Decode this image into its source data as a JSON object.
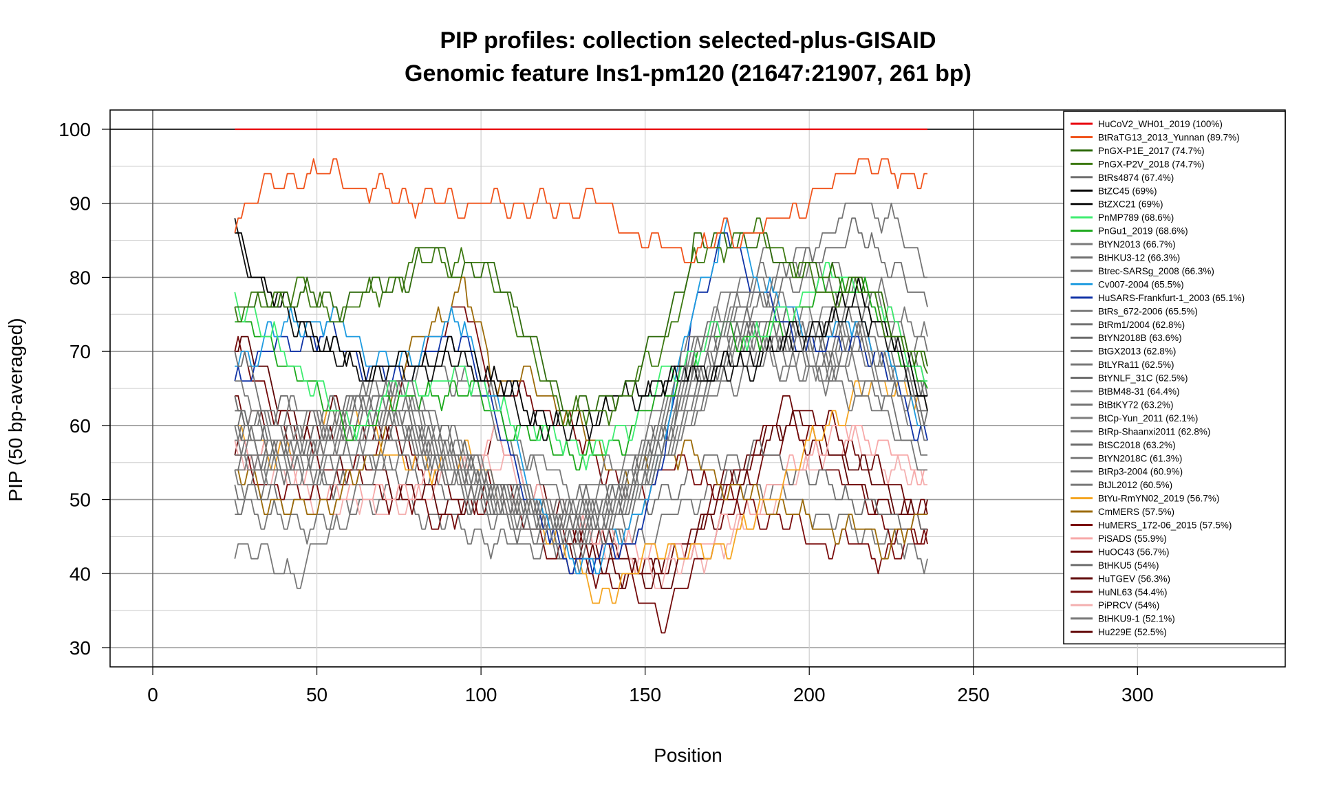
{
  "chart_data": {
    "type": "line",
    "title": "PIP profiles: collection selected-plus-GISAID",
    "subtitle": "Genomic feature Ins1-pm120 (21647:21907, 261 bp)",
    "xlabel": "Position",
    "ylabel": "PIP (50 bp-averaged)",
    "xlim": [
      -13,
      345
    ],
    "ylim": [
      27.4,
      102.6
    ],
    "xticks": [
      0,
      50,
      100,
      150,
      200,
      250,
      300
    ],
    "yticks": [
      30,
      40,
      50,
      60,
      70,
      80,
      90,
      100
    ],
    "grid": true,
    "legend_position": "top-right",
    "x": [
      25,
      35,
      45,
      55,
      65,
      75,
      85,
      95,
      105,
      115,
      125,
      135,
      145,
      155,
      165,
      175,
      185,
      195,
      205,
      215,
      225,
      236
    ],
    "series": [
      {
        "name": "HuCoV2_WH01_2019 (100%)",
        "color": "#e8000b",
        "values": [
          100,
          100,
          100,
          100,
          100,
          100,
          100,
          100,
          100,
          100,
          100,
          100,
          100,
          100,
          100,
          100,
          100,
          100,
          100,
          100,
          100,
          100
        ]
      },
      {
        "name": "BtRaTG13_2013_Yunnan (89.7%)",
        "color": "#f0541c",
        "values": [
          88,
          92,
          94,
          94,
          92,
          91,
          90,
          90,
          90,
          90,
          89,
          91,
          86,
          84,
          83,
          86,
          86,
          89,
          92,
          96,
          94,
          94
        ]
      },
      {
        "name": "PnGX-P1E_2017 (74.7%)",
        "color": "#2f6b0c",
        "values": [
          76,
          76,
          78,
          76,
          78,
          79,
          84,
          81,
          81,
          72,
          63,
          62,
          66,
          72,
          84,
          86,
          84,
          82,
          80,
          80,
          74,
          68
        ]
      },
      {
        "name": "PnGX-P2V_2018 (74.7%)",
        "color": "#3d7a12",
        "values": [
          75,
          77,
          78,
          75,
          77,
          80,
          83,
          82,
          80,
          70,
          62,
          61,
          65,
          70,
          82,
          85,
          86,
          82,
          78,
          79,
          73,
          67
        ]
      },
      {
        "name": "BtRs4874 (67.4%)",
        "color": "#707070",
        "values": [
          70,
          62,
          58,
          60,
          64,
          66,
          62,
          56,
          52,
          50,
          48,
          46,
          48,
          56,
          70,
          74,
          72,
          70,
          68,
          70,
          66,
          60
        ]
      },
      {
        "name": "BtZC45 (69%)",
        "color": "#000000",
        "values": [
          86,
          78,
          74,
          70,
          68,
          68,
          69,
          70,
          66,
          62,
          60,
          62,
          65,
          66,
          68,
          68,
          70,
          72,
          74,
          78,
          72,
          64
        ]
      },
      {
        "name": "BtZXC21 (69%)",
        "color": "#111111",
        "values": [
          86,
          77,
          73,
          69,
          67,
          67,
          68,
          69,
          65,
          61,
          59,
          61,
          64,
          65,
          67,
          67,
          69,
          71,
          73,
          76,
          71,
          62
        ]
      },
      {
        "name": "PnMP789 (68.6%)",
        "color": "#3ded6f",
        "values": [
          78,
          72,
          68,
          62,
          60,
          66,
          64,
          68,
          62,
          60,
          58,
          56,
          60,
          66,
          70,
          74,
          72,
          76,
          80,
          80,
          74,
          66
        ]
      },
      {
        "name": "PnGu1_2019 (68.6%)",
        "color": "#1aa81a",
        "values": [
          76,
          70,
          67,
          61,
          59,
          65,
          63,
          66,
          61,
          59,
          57,
          55,
          59,
          64,
          69,
          73,
          71,
          75,
          78,
          79,
          72,
          65
        ]
      },
      {
        "name": "BtYN2013 (66.7%)",
        "color": "#7a7a7a",
        "values": [
          66,
          60,
          56,
          58,
          62,
          64,
          60,
          54,
          50,
          48,
          46,
          48,
          50,
          58,
          68,
          72,
          70,
          68,
          66,
          72,
          68,
          62
        ]
      },
      {
        "name": "BtHKU3-12 (66.3%)",
        "color": "#6f6f6f",
        "values": [
          62,
          58,
          54,
          56,
          58,
          60,
          56,
          52,
          50,
          48,
          46,
          46,
          50,
          60,
          70,
          74,
          76,
          80,
          84,
          86,
          82,
          76
        ]
      },
      {
        "name": "Btrec-SARSg_2008 (66.3%)",
        "color": "#757575",
        "values": [
          60,
          56,
          52,
          54,
          56,
          58,
          56,
          50,
          48,
          46,
          44,
          46,
          52,
          62,
          72,
          76,
          78,
          82,
          86,
          90,
          88,
          80
        ]
      },
      {
        "name": "Cv007-2004 (65.5%)",
        "color": "#1e9be0",
        "values": [
          68,
          72,
          74,
          74,
          70,
          68,
          72,
          74,
          62,
          52,
          42,
          42,
          46,
          56,
          78,
          86,
          80,
          74,
          72,
          74,
          68,
          60
        ]
      },
      {
        "name": "HuSARS-Frankfurt-1_2003 (65.1%)",
        "color": "#1033a6",
        "values": [
          66,
          70,
          72,
          72,
          68,
          66,
          70,
          72,
          60,
          50,
          42,
          42,
          44,
          54,
          76,
          86,
          78,
          72,
          70,
          72,
          66,
          58
        ]
      },
      {
        "name": "BtRs_672-2006 (65.5%)",
        "color": "#7c7c7c",
        "values": [
          64,
          58,
          56,
          58,
          60,
          62,
          58,
          54,
          50,
          48,
          46,
          48,
          52,
          60,
          70,
          76,
          78,
          76,
          74,
          78,
          74,
          68
        ]
      },
      {
        "name": "BtRm1/2004 (62.8%)",
        "color": "#727272",
        "values": [
          58,
          56,
          54,
          58,
          60,
          62,
          58,
          52,
          50,
          48,
          46,
          48,
          50,
          58,
          66,
          70,
          72,
          72,
          70,
          74,
          72,
          66
        ]
      },
      {
        "name": "BtYN2018B (63.6%)",
        "color": "#6c6c6c",
        "values": [
          60,
          58,
          56,
          60,
          62,
          64,
          60,
          54,
          50,
          48,
          48,
          50,
          52,
          60,
          68,
          72,
          74,
          72,
          70,
          72,
          70,
          64
        ]
      },
      {
        "name": "BtGX2013 (62.8%)",
        "color": "#808080",
        "values": [
          56,
          54,
          52,
          56,
          58,
          60,
          58,
          52,
          50,
          48,
          46,
          48,
          52,
          58,
          66,
          70,
          72,
          70,
          68,
          70,
          68,
          62
        ]
      },
      {
        "name": "BtLYRa11 (62.5%)",
        "color": "#777777",
        "values": [
          58,
          56,
          56,
          58,
          60,
          60,
          56,
          52,
          50,
          48,
          46,
          48,
          50,
          56,
          64,
          70,
          72,
          72,
          72,
          74,
          70,
          64
        ]
      },
      {
        "name": "BtYNLF_31C (62.5%)",
        "color": "#6e6e6e",
        "values": [
          56,
          56,
          58,
          60,
          62,
          62,
          58,
          54,
          50,
          48,
          46,
          48,
          52,
          58,
          66,
          72,
          74,
          74,
          72,
          72,
          68,
          62
        ]
      },
      {
        "name": "BtBM48-31 (64.4%)",
        "color": "#797979",
        "values": [
          62,
          60,
          60,
          62,
          64,
          66,
          70,
          68,
          62,
          56,
          52,
          52,
          56,
          62,
          70,
          78,
          82,
          82,
          80,
          80,
          76,
          72
        ]
      },
      {
        "name": "BtBtKY72 (63.2%)",
        "color": "#737373",
        "values": [
          60,
          58,
          58,
          62,
          64,
          66,
          68,
          66,
          60,
          54,
          50,
          50,
          54,
          60,
          68,
          76,
          80,
          80,
          78,
          78,
          74,
          70
        ]
      },
      {
        "name": "BtCp-Yun_2011 (62.1%)",
        "color": "#7e7e7e",
        "values": [
          54,
          56,
          58,
          60,
          60,
          62,
          60,
          56,
          52,
          50,
          48,
          48,
          50,
          56,
          64,
          70,
          72,
          72,
          70,
          70,
          66,
          60
        ]
      },
      {
        "name": "BtRp-Shaanxi2011 (62.8%)",
        "color": "#747474",
        "values": [
          58,
          60,
          62,
          62,
          62,
          62,
          58,
          54,
          52,
          50,
          48,
          48,
          50,
          56,
          64,
          70,
          72,
          72,
          72,
          72,
          68,
          62
        ]
      },
      {
        "name": "BtSC2018 (63.2%)",
        "color": "#6a6a6a",
        "values": [
          60,
          62,
          62,
          62,
          64,
          64,
          60,
          56,
          52,
          50,
          48,
          48,
          52,
          58,
          66,
          72,
          74,
          74,
          72,
          72,
          68,
          62
        ]
      },
      {
        "name": "BtYN2018C (61.3%)",
        "color": "#7b7b7b",
        "values": [
          52,
          54,
          56,
          58,
          60,
          60,
          58,
          54,
          50,
          48,
          46,
          46,
          50,
          56,
          62,
          68,
          70,
          70,
          68,
          68,
          64,
          58
        ]
      },
      {
        "name": "BtRp3-2004 (60.9%)",
        "color": "#717171",
        "values": [
          50,
          52,
          56,
          58,
          58,
          58,
          56,
          52,
          48,
          46,
          46,
          46,
          48,
          54,
          62,
          68,
          70,
          70,
          68,
          66,
          62,
          56
        ]
      },
      {
        "name": "BtJL2012 (60.5%)",
        "color": "#787878",
        "values": [
          44,
          42,
          40,
          46,
          52,
          56,
          56,
          54,
          50,
          48,
          46,
          46,
          50,
          56,
          62,
          66,
          68,
          68,
          66,
          64,
          60,
          54
        ]
      },
      {
        "name": "BtYu-RmYN02_2019 (56.7%)",
        "color": "#f5a623",
        "values": [
          60,
          56,
          58,
          62,
          60,
          56,
          54,
          56,
          52,
          48,
          44,
          36,
          40,
          44,
          42,
          44,
          48,
          54,
          60,
          64,
          66,
          62
        ]
      },
      {
        "name": "CmMERS (57.5%)",
        "color": "#9c6b0a",
        "values": [
          54,
          50,
          48,
          50,
          54,
          66,
          74,
          78,
          66,
          66,
          62,
          58,
          52,
          56,
          56,
          52,
          50,
          48,
          46,
          46,
          44,
          48
        ]
      },
      {
        "name": "HuMERS_172-06_2015 (57.5%)",
        "color": "#7a0c0c",
        "values": [
          56,
          52,
          50,
          52,
          56,
          64,
          72,
          76,
          64,
          64,
          60,
          56,
          50,
          54,
          54,
          50,
          48,
          46,
          44,
          44,
          42,
          46
        ]
      },
      {
        "name": "PiSADS (55.9%)",
        "color": "#f7a8a8",
        "values": [
          58,
          56,
          54,
          50,
          52,
          50,
          54,
          56,
          58,
          52,
          48,
          46,
          44,
          42,
          44,
          46,
          50,
          54,
          58,
          60,
          56,
          54
        ]
      },
      {
        "name": "HuOC43 (56.7%)",
        "color": "#6b0808",
        "values": [
          64,
          60,
          56,
          58,
          60,
          58,
          52,
          50,
          52,
          48,
          46,
          44,
          42,
          40,
          46,
          52,
          58,
          64,
          60,
          56,
          52,
          48
        ]
      },
      {
        "name": "BtHKU5 (54%)",
        "color": "#6d6d6d",
        "values": [
          52,
          50,
          50,
          52,
          54,
          54,
          52,
          50,
          48,
          46,
          44,
          44,
          46,
          50,
          54,
          56,
          56,
          54,
          52,
          50,
          48,
          46
        ]
      },
      {
        "name": "HuTGEV (56.3%)",
        "color": "#5e0606",
        "values": [
          72,
          66,
          60,
          56,
          54,
          52,
          50,
          50,
          52,
          48,
          44,
          42,
          40,
          38,
          44,
          50,
          56,
          62,
          58,
          54,
          50,
          46
        ]
      },
      {
        "name": "HuNL63 (54.4%)",
        "color": "#730a0a",
        "values": [
          70,
          64,
          58,
          54,
          52,
          50,
          48,
          48,
          50,
          46,
          42,
          40,
          38,
          34,
          40,
          48,
          54,
          60,
          56,
          50,
          46,
          44
        ]
      },
      {
        "name": "PiPRCV (54%)",
        "color": "#f4b0b0",
        "values": [
          56,
          54,
          52,
          48,
          50,
          48,
          52,
          54,
          56,
          50,
          46,
          44,
          42,
          40,
          42,
          44,
          48,
          52,
          56,
          58,
          54,
          52
        ]
      },
      {
        "name": "BtHKU9-1 (52.1%)",
        "color": "#767676",
        "values": [
          50,
          48,
          46,
          48,
          50,
          50,
          48,
          46,
          44,
          44,
          42,
          42,
          44,
          46,
          50,
          52,
          52,
          50,
          48,
          46,
          44,
          42
        ]
      },
      {
        "name": "Hu229E (52.5%)",
        "color": "#620707",
        "values": [
          58,
          56,
          60,
          62,
          60,
          58,
          56,
          54,
          58,
          52,
          48,
          44,
          42,
          40,
          46,
          52,
          58,
          60,
          56,
          52,
          48,
          50
        ]
      }
    ]
  }
}
